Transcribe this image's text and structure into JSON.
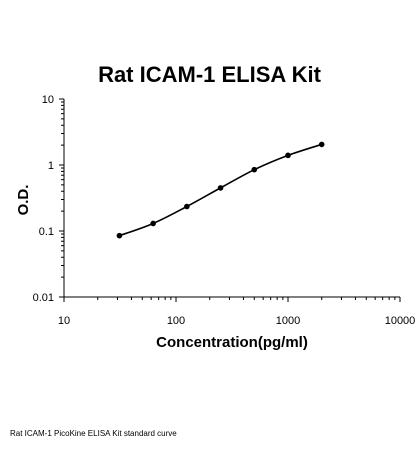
{
  "chart_data": {
    "type": "scatter",
    "title": "Rat ICAM-1 ELISA Kit",
    "xlabel": "Concentration(pg/ml)",
    "ylabel": "O.D.",
    "x_scale": "log",
    "y_scale": "log",
    "xlim": [
      10,
      10000
    ],
    "ylim": [
      0.01,
      10
    ],
    "x_ticks": [
      "10",
      "100",
      "1000",
      "10000"
    ],
    "y_ticks": [
      "0.01",
      "0.1",
      "1",
      "10"
    ],
    "grid": false,
    "legend": "none",
    "fit_line": true,
    "points": [
      {
        "x": 31.25,
        "y": 0.085
      },
      {
        "x": 62.5,
        "y": 0.13
      },
      {
        "x": 125,
        "y": 0.235
      },
      {
        "x": 250,
        "y": 0.45
      },
      {
        "x": 500,
        "y": 0.85
      },
      {
        "x": 1000,
        "y": 1.4
      },
      {
        "x": 2000,
        "y": 2.05
      }
    ]
  },
  "caption": "Rat ICAM-1 PicoKine ELISA Kit standard curve"
}
